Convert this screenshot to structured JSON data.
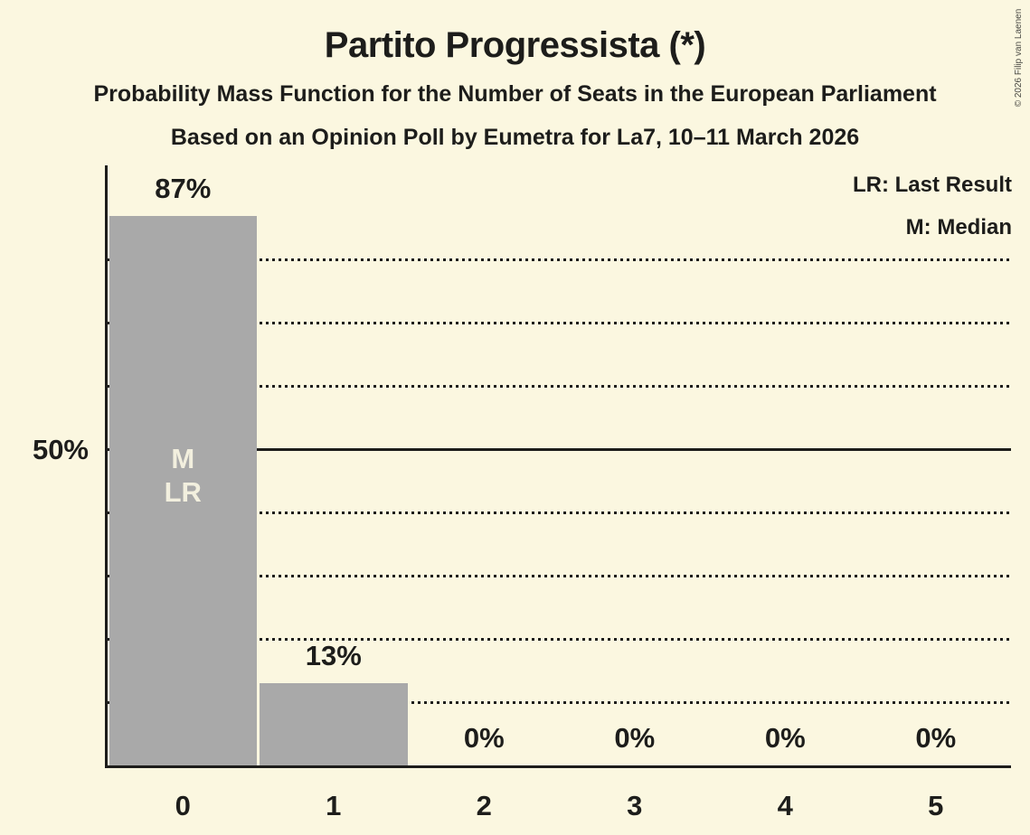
{
  "header": {
    "title": "Partito Progressista (*)",
    "subtitle1": "Probability Mass Function for the Number of Seats in the European Parliament",
    "subtitle2": "Based on an Opinion Poll by Eumetra for La7, 10–11 March 2026",
    "copyright": "© 2026 Filip van Laenen"
  },
  "legend": {
    "lr_label": "LR: Last Result",
    "m_label": "M: Median"
  },
  "y_axis": {
    "tick_label": "50%",
    "tick_value": 50
  },
  "chart_data": {
    "type": "bar",
    "title": "Partito Progressista (*)",
    "categories": [
      "0",
      "1",
      "2",
      "3",
      "4",
      "5"
    ],
    "values": [
      87,
      13,
      0,
      0,
      0,
      0
    ],
    "value_labels": [
      "87%",
      "13%",
      "0%",
      "0%",
      "0%",
      "0%"
    ],
    "xlabel": "",
    "ylabel": "",
    "ylim": [
      0,
      95
    ],
    "grid": "horizontal dotted lines every 10%, solid line at 50%",
    "dotted_gridlines_pct": [
      10,
      20,
      30,
      40,
      60,
      70,
      80
    ],
    "solid_line_pct": 50,
    "bar0_marker_labels": [
      "M",
      "LR"
    ],
    "legend_position": "top-right",
    "colors": {
      "background": "#FBF7E0",
      "bar": "#A9A9A9",
      "text": "#1D1D1B",
      "bar_marker_text": "#F2EFDE"
    }
  }
}
